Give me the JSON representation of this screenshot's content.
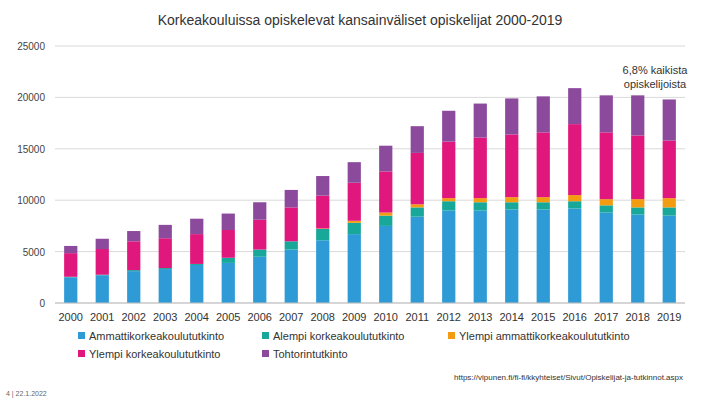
{
  "chart_data": {
    "type": "bar",
    "stacked": true,
    "grid": true,
    "legend": "bottom",
    "title": "Korkeakouluissa opiskelevat kansainväliset opiskelijat 2000-2019",
    "annotation": "6,8% kaikista opiskelijoista",
    "source": "https://vipunen.fi/fi-fi/kkyhteiset/Sivut/Opiskelijat-ja-tutkinnot.aspx",
    "footer": "4 | 22.1.2022",
    "categories": [
      "2000",
      "2001",
      "2002",
      "2003",
      "2004",
      "2005",
      "2006",
      "2007",
      "2008",
      "2009",
      "2010",
      "2011",
      "2012",
      "2013",
      "2014",
      "2015",
      "2016",
      "2017",
      "2018",
      "2019"
    ],
    "ylim": [
      0,
      25000
    ],
    "yticks": [
      0,
      5000,
      10000,
      15000,
      20000,
      25000
    ],
    "series": [
      {
        "name": "Ammattikorkeakoulututkinto",
        "color": "#2e9bd6",
        "values": [
          2500,
          2700,
          3100,
          3300,
          3700,
          3900,
          4500,
          5200,
          6100,
          6700,
          7500,
          8400,
          9000,
          9000,
          9100,
          9100,
          9200,
          8800,
          8600,
          8500
        ]
      },
      {
        "name": "Alempi korkeakoulututkinto",
        "color": "#17a89a",
        "values": [
          50,
          50,
          100,
          100,
          100,
          500,
          700,
          800,
          1100,
          1100,
          1000,
          900,
          900,
          800,
          700,
          700,
          700,
          700,
          700,
          800
        ]
      },
      {
        "name": "Ylempi ammattikorkeakoulututkinto",
        "color": "#f39c12",
        "values": [
          0,
          0,
          0,
          0,
          0,
          0,
          0,
          0,
          50,
          200,
          300,
          300,
          300,
          400,
          500,
          500,
          600,
          600,
          800,
          900
        ]
      },
      {
        "name": "Ylempi korkeakoulututkinto",
        "color": "#e0177c",
        "values": [
          2300,
          2500,
          2800,
          2900,
          2900,
          2700,
          2900,
          3300,
          3200,
          3700,
          4000,
          5000,
          5500,
          5900,
          6100,
          6300,
          6900,
          6500,
          6200,
          5600
        ]
      },
      {
        "name": "Tohtorintutkinto",
        "color": "#8b4a9c",
        "values": [
          700,
          1000,
          1000,
          1300,
          1500,
          1600,
          1700,
          1700,
          1900,
          2000,
          2500,
          2600,
          3000,
          3300,
          3500,
          3500,
          3500,
          3600,
          3900,
          4000
        ]
      }
    ]
  }
}
